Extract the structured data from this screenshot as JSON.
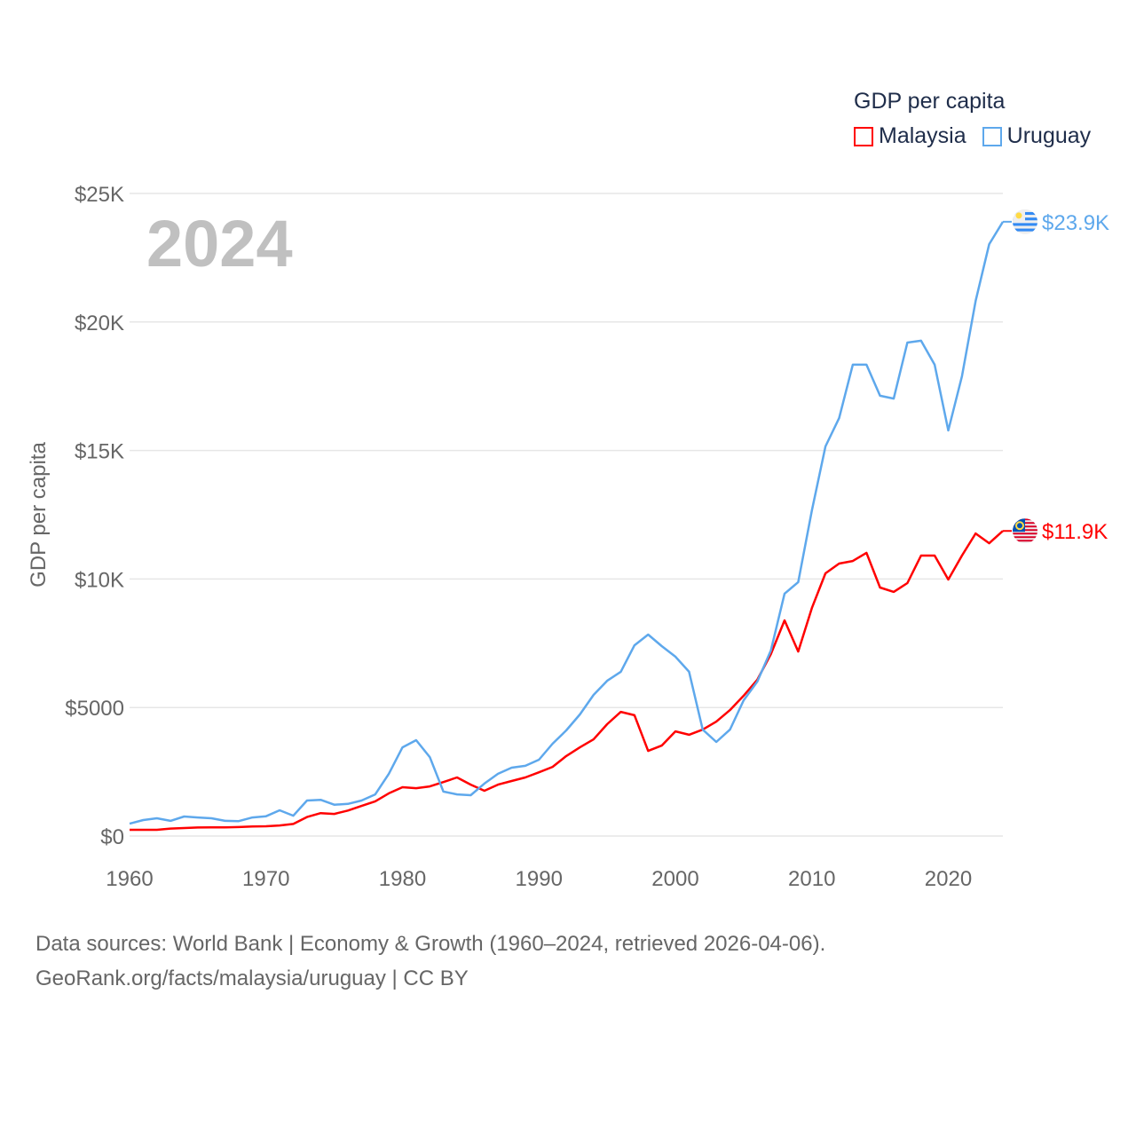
{
  "chart_data": {
    "type": "line",
    "title": "GDP per capita",
    "year_label": "2024",
    "xlabel": "",
    "ylabel": "GDP per capita",
    "xlim": [
      1960,
      2024
    ],
    "ylim": [
      0,
      25000
    ],
    "x_ticks": [
      1960,
      1970,
      1980,
      1990,
      2000,
      2010,
      2020
    ],
    "x_tick_labels": [
      "1960",
      "1970",
      "1980",
      "1990",
      "2000",
      "2010",
      "2020"
    ],
    "y_ticks": [
      0,
      5000,
      10000,
      15000,
      20000,
      25000
    ],
    "y_tick_labels": [
      "$0",
      "$5000",
      "$10K",
      "$15K",
      "$20K",
      "$25K"
    ],
    "grid": true,
    "legend_placement": "top-right",
    "x": [
      1960,
      1961,
      1962,
      1963,
      1964,
      1965,
      1966,
      1967,
      1968,
      1969,
      1970,
      1971,
      1972,
      1973,
      1974,
      1975,
      1976,
      1977,
      1978,
      1979,
      1980,
      1981,
      1982,
      1983,
      1984,
      1985,
      1986,
      1987,
      1988,
      1989,
      1990,
      1991,
      1992,
      1993,
      1994,
      1995,
      1996,
      1997,
      1998,
      1999,
      2000,
      2001,
      2002,
      2003,
      2004,
      2005,
      2006,
      2007,
      2008,
      2009,
      2010,
      2011,
      2012,
      2013,
      2014,
      2015,
      2016,
      2017,
      2018,
      2019,
      2020,
      2021,
      2022,
      2023,
      2024
    ],
    "series": [
      {
        "name": "Malaysia",
        "color": "#ff0000",
        "end_label": "$11.9K",
        "flag": "malaysia-flag",
        "values": [
          240,
          240,
          240,
          290,
          310,
          330,
          340,
          340,
          350,
          370,
          380,
          410,
          470,
          740,
          890,
          860,
          990,
          1170,
          1350,
          1660,
          1900,
          1860,
          1930,
          2100,
          2280,
          2000,
          1760,
          2000,
          2140,
          2280,
          2480,
          2690,
          3110,
          3450,
          3760,
          4350,
          4830,
          4700,
          3310,
          3520,
          4070,
          3940,
          4140,
          4450,
          4900,
          5460,
          6080,
          7080,
          8390,
          7180,
          8870,
          10220,
          10600,
          10700,
          11020,
          9670,
          9500,
          9840,
          10910,
          10910,
          9980,
          10910,
          11770,
          11390,
          11870
        ]
      },
      {
        "name": "Uruguay",
        "color": "#5ea8ec",
        "end_label": "$23.9K",
        "flag": "uruguay-flag",
        "values": [
          480,
          620,
          690,
          590,
          760,
          720,
          690,
          590,
          580,
          720,
          770,
          1000,
          790,
          1380,
          1410,
          1220,
          1250,
          1380,
          1620,
          2420,
          3450,
          3730,
          3070,
          1730,
          1620,
          1590,
          2040,
          2420,
          2660,
          2730,
          2970,
          3590,
          4110,
          4730,
          5490,
          6040,
          6390,
          7420,
          7840,
          7390,
          6980,
          6390,
          4140,
          3660,
          4140,
          5280,
          6010,
          7220,
          9430,
          9880,
          12670,
          15160,
          16260,
          18340,
          18340,
          17130,
          17020,
          19200,
          19270,
          18340,
          15780,
          17890,
          20820,
          23030,
          23900
        ]
      }
    ]
  },
  "footer": {
    "line1": "Data sources: World Bank | Economy & Growth (1960–2024, retrieved 2026-04-06).",
    "line2": "GeoRank.org/facts/malaysia/uruguay | CC BY"
  }
}
